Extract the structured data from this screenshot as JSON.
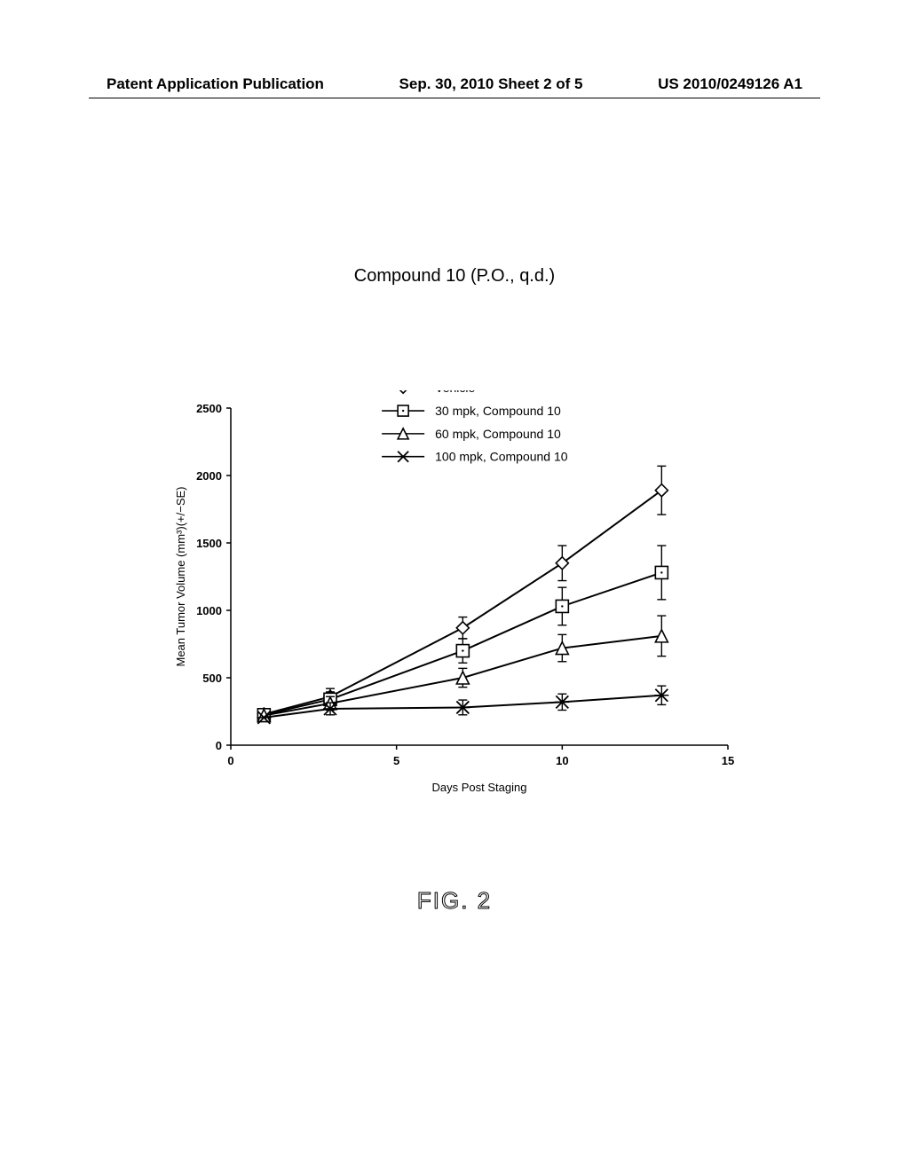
{
  "header": {
    "left": "Patent Application Publication",
    "center": "Sep. 30, 2010  Sheet 2 of 5",
    "right": "US 2010/0249126 A1"
  },
  "chart": {
    "type": "line",
    "title": "Compound 10 (P.O., q.d.)",
    "xlabel": "Days Post Staging",
    "ylabel": "Mean Tumor Volume (mm³)(+/−SE)",
    "xlim": [
      0,
      15
    ],
    "ylim": [
      0,
      2500
    ],
    "xtick_step": 5,
    "ytick_step": 500,
    "label_fontsize": 13,
    "tick_fontsize": 13,
    "background_color": "#ffffff",
    "axis_color": "#000000",
    "line_color": "#000000",
    "line_width": 2,
    "marker_size": 7,
    "legend": {
      "x": 5.2,
      "y_top": 2650,
      "line_spacing": 170,
      "fontsize": 14
    },
    "series": [
      {
        "label": "Vehicle",
        "marker": "diamond",
        "x": [
          1,
          3,
          7,
          10,
          13
        ],
        "y": [
          230,
          360,
          870,
          1350,
          1890
        ],
        "err": [
          0,
          60,
          80,
          130,
          180
        ]
      },
      {
        "label": "30 mpk, Compound 10",
        "marker": "square-dot",
        "x": [
          1,
          3,
          7,
          10,
          13
        ],
        "y": [
          225,
          340,
          700,
          1030,
          1280
        ],
        "err": [
          0,
          55,
          90,
          140,
          200
        ]
      },
      {
        "label": "60 mpk, Compound 10",
        "marker": "triangle",
        "x": [
          1,
          3,
          7,
          10,
          13
        ],
        "y": [
          220,
          310,
          500,
          720,
          810
        ],
        "err": [
          0,
          50,
          70,
          100,
          150
        ]
      },
      {
        "label": "100 mpk, Compound 10",
        "marker": "x",
        "x": [
          1,
          3,
          7,
          10,
          13
        ],
        "y": [
          205,
          270,
          280,
          320,
          370
        ],
        "err": [
          0,
          45,
          55,
          60,
          70
        ]
      }
    ]
  },
  "figure_label": "FIG. 2"
}
